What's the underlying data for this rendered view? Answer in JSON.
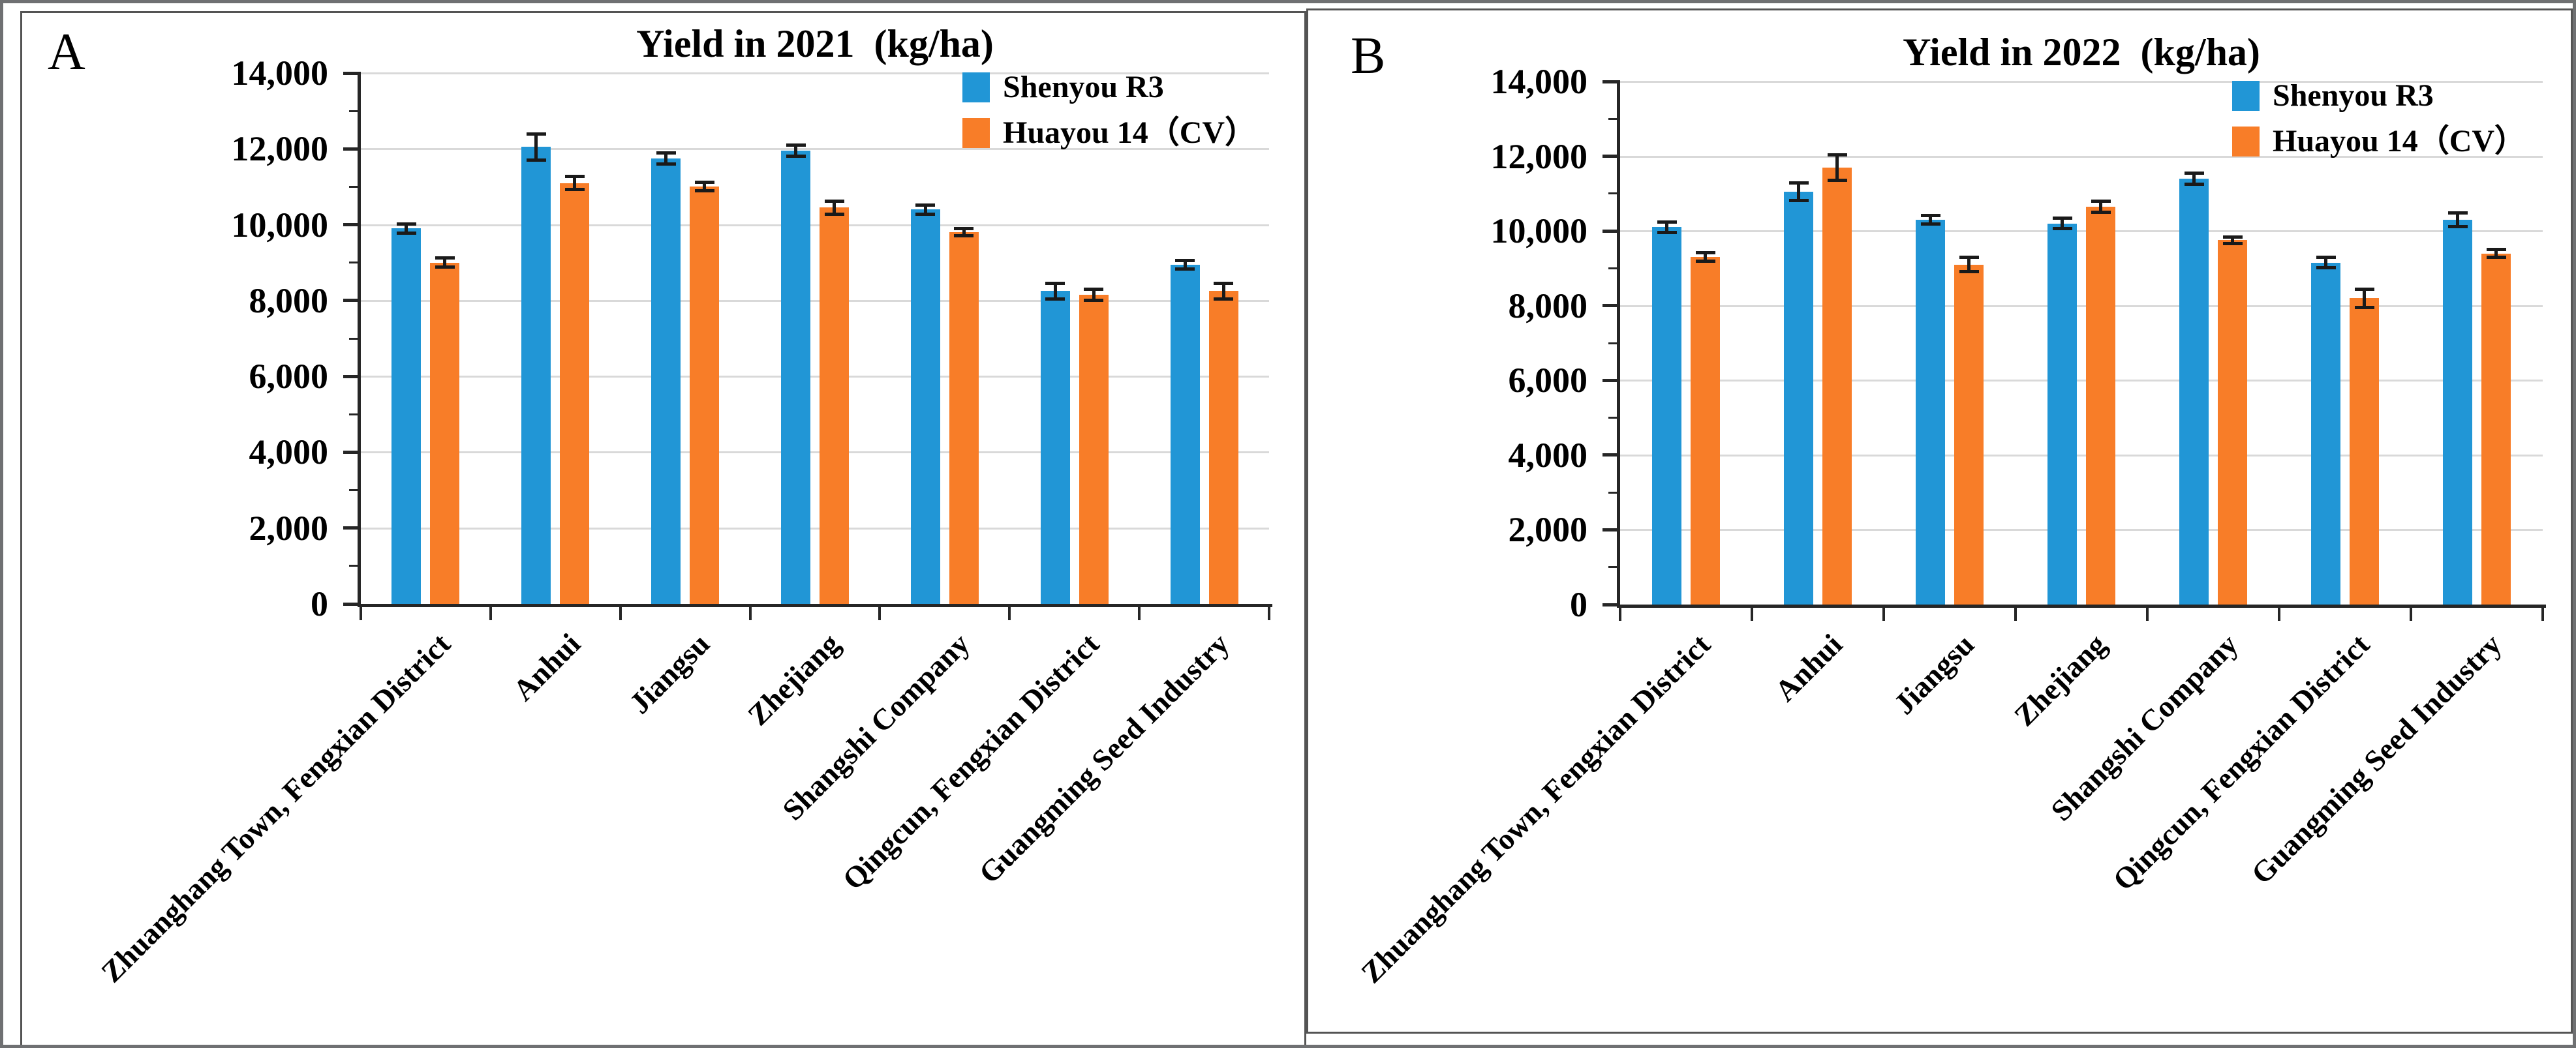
{
  "figure": {
    "description": "Two-panel grouped bar chart comparing rapeseed yields of Shenyou R3 and Huayou 14 (CV) across seven trial locations in 2021 and 2022"
  },
  "colors": {
    "series_blue": "#2196D6",
    "series_orange": "#F87D28",
    "gridline": "#D9D9D9",
    "axis": "#262626",
    "error_bar": "#1A1A1A"
  },
  "chart_data": [
    {
      "type": "bar",
      "panel_label": "A",
      "title": "Yield in 2021  (kg/ha)",
      "xlabel": "",
      "ylabel": "",
      "ylim": [
        0,
        14000
      ],
      "ytick_interval": 2000,
      "minor_tick_interval": 1000,
      "grid": true,
      "error_bars": true,
      "legend_position": "top-right",
      "y_tick_labels": [
        "0",
        "2,000",
        "4,000",
        "6,000",
        "8,000",
        "10,000",
        "12,000",
        "14,000"
      ],
      "categories": [
        "Zhuanghang Town, Fengxian District",
        "Anhui",
        "Jiangsu",
        "Zhejiang",
        "Shangshi Company",
        "Qingcun, Fengxian District",
        "Guangming Seed Industry"
      ],
      "series": [
        {
          "name": "Shenyou R3",
          "color": "#2196D6",
          "values": [
            9900,
            12050,
            11750,
            11950,
            10400,
            8250,
            8950
          ],
          "errors": [
            130,
            350,
            150,
            160,
            130,
            220,
            120
          ]
        },
        {
          "name": "Huayou 14（CV）",
          "color": "#F87D28",
          "values": [
            9000,
            11100,
            11000,
            10450,
            9800,
            8150,
            8250
          ],
          "errors": [
            130,
            180,
            120,
            180,
            100,
            150,
            220
          ]
        }
      ]
    },
    {
      "type": "bar",
      "panel_label": "B",
      "title": "Yield in 2022  (kg/ha)",
      "xlabel": "",
      "ylabel": "",
      "ylim": [
        0,
        14000
      ],
      "ytick_interval": 2000,
      "minor_tick_interval": 1000,
      "grid": true,
      "error_bars": true,
      "legend_position": "top-right",
      "y_tick_labels": [
        "0",
        "2,000",
        "4,000",
        "6,000",
        "8,000",
        "10,000",
        "12,000",
        "14,000"
      ],
      "categories": [
        "Zhuanghang Town, Fengxian District",
        "Anhui",
        "Jiangsu",
        "Zhejiang",
        "Shangshi Company",
        "Qingcun, Fengxian District",
        "Guangming Seed Industry"
      ],
      "series": [
        {
          "name": "Shenyou R3",
          "color": "#2196D6",
          "values": [
            10100,
            11050,
            10300,
            10200,
            11400,
            9150,
            10300
          ],
          "errors": [
            150,
            250,
            130,
            150,
            150,
            150,
            200
          ]
        },
        {
          "name": "Huayou 14（CV）",
          "color": "#F87D28",
          "values": [
            9300,
            11700,
            9100,
            10650,
            9750,
            8200,
            9400
          ],
          "errors": [
            120,
            350,
            200,
            150,
            100,
            250,
            120
          ]
        }
      ]
    }
  ]
}
